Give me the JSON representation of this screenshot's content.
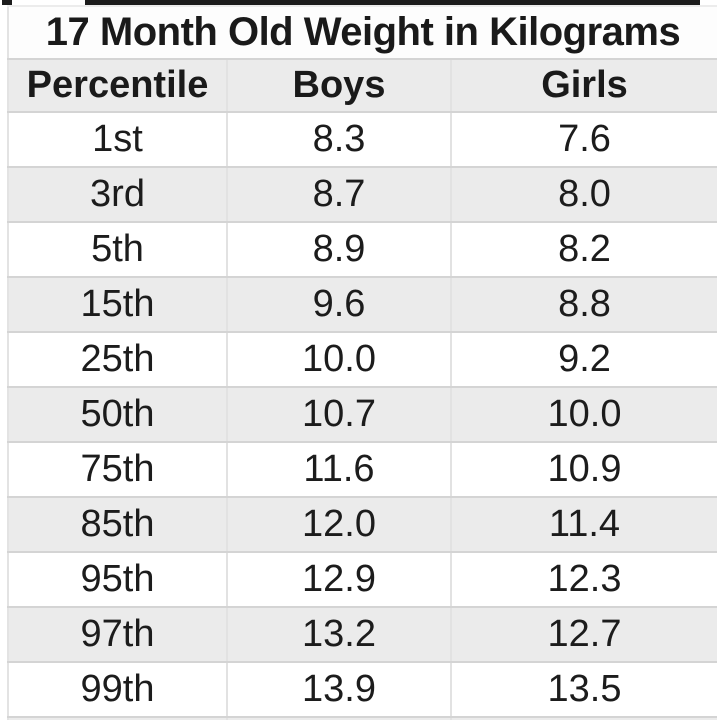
{
  "chart_data": {
    "type": "table",
    "title": "17 Month Old Weight in Kilograms",
    "columns": [
      "Percentile",
      "Boys",
      "Girls"
    ],
    "rows": [
      [
        "1st",
        "8.3",
        "7.6"
      ],
      [
        "3rd",
        "8.7",
        "8.0"
      ],
      [
        "5th",
        "8.9",
        "8.2"
      ],
      [
        "15th",
        "9.6",
        "8.8"
      ],
      [
        "25th",
        "10.0",
        "9.2"
      ],
      [
        "50th",
        "10.7",
        "10.0"
      ],
      [
        "75th",
        "11.6",
        "10.9"
      ],
      [
        "85th",
        "12.0",
        "11.4"
      ],
      [
        "95th",
        "12.9",
        "12.3"
      ],
      [
        "97th",
        "13.2",
        "12.7"
      ],
      [
        "99th",
        "13.9",
        "13.5"
      ]
    ],
    "units": "kg",
    "layout": {
      "row_stripe_colors": [
        "#ffffff",
        "#ebebeb"
      ],
      "gridline_color": "#d4d4d4",
      "header_background": "#ebebeb",
      "text_color": "#1a1a1a"
    }
  }
}
